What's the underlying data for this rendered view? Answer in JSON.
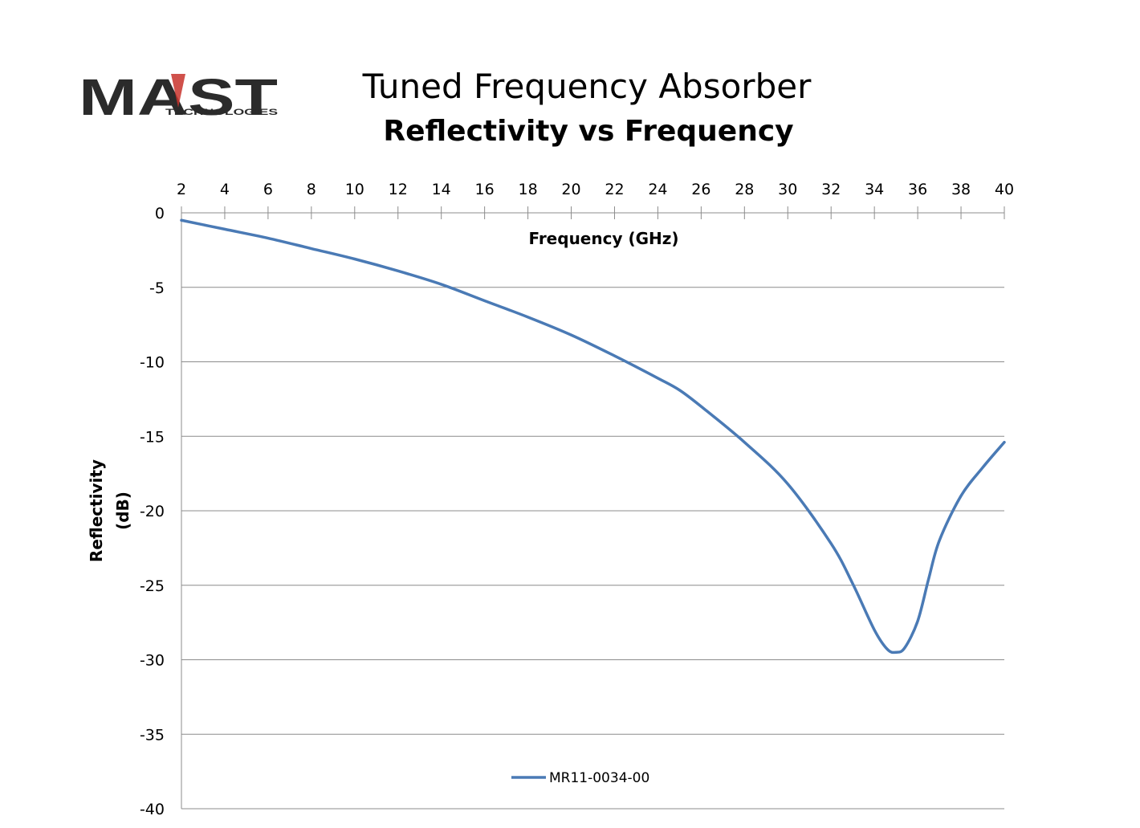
{
  "logo": {
    "brand": "MAST",
    "tagline": "TECHNOLOGIES",
    "brand_color": "#2b2b2b",
    "accent_color": "#c8332b"
  },
  "chart_data": {
    "type": "line",
    "title": "Tuned Frequency Absorber",
    "subtitle": "Reflectivity vs Frequency",
    "xlabel": "Frequency (GHz)",
    "ylabel_lines": [
      "Reflectivity",
      "(dB)"
    ],
    "xlim": [
      2,
      40
    ],
    "ylim": [
      -40,
      0
    ],
    "x_ticks": [
      2,
      4,
      6,
      8,
      10,
      12,
      14,
      16,
      18,
      20,
      22,
      24,
      26,
      28,
      30,
      32,
      34,
      36,
      38,
      40
    ],
    "y_ticks": [
      0,
      -5,
      -10,
      -15,
      -20,
      -25,
      -30,
      -35,
      -40
    ],
    "x_axis_position": "top",
    "grid": "horizontal",
    "legend_position": "bottom",
    "series": [
      {
        "name": "MR11-0034-00",
        "color": "#4a7ab5",
        "x": [
          2,
          4,
          6,
          8,
          10,
          12,
          14,
          16,
          18,
          20,
          22,
          24,
          25,
          26,
          28,
          30,
          32,
          33,
          34,
          34.6,
          35,
          35.4,
          36,
          36.5,
          37,
          38,
          39,
          40
        ],
        "y": [
          -0.5,
          -1.1,
          -1.7,
          -2.4,
          -3.1,
          -3.9,
          -4.8,
          -5.9,
          -7.0,
          -8.2,
          -9.6,
          -11.1,
          -11.9,
          -13.0,
          -15.4,
          -18.2,
          -22.2,
          -24.9,
          -28.0,
          -29.3,
          -29.5,
          -29.2,
          -27.4,
          -24.6,
          -22.0,
          -19.0,
          -17.1,
          -15.4
        ]
      }
    ]
  }
}
